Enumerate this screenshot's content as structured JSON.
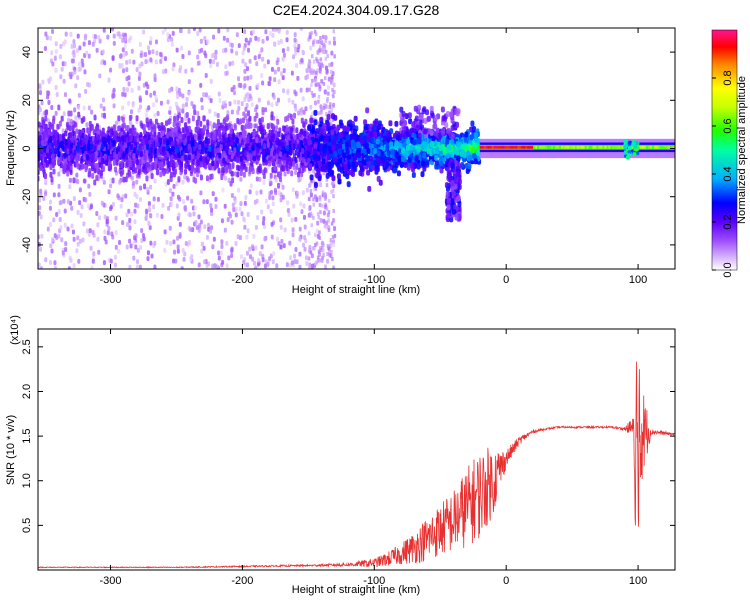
{
  "title": "C2E4.2024.304.09.17.G28",
  "chart_data": [
    {
      "type": "heatmap",
      "xlabel": "Height of straight line (km)",
      "ylabel": "Frequency (Hz)",
      "xlim": [
        -355,
        128
      ],
      "ylim": [
        -50,
        50
      ],
      "xticks": [
        -300,
        -200,
        -100,
        0,
        100
      ],
      "yticks": [
        -40,
        -20,
        0,
        20,
        40
      ],
      "colorbar": {
        "label": "Normalized spectral amplitude",
        "range": [
          0,
          1
        ],
        "ticks": [
          0.0,
          0.2,
          0.4,
          0.6,
          0.8
        ],
        "tick_labels": [
          "0.0",
          "0.2",
          "0.4",
          "0.6",
          "0.8"
        ],
        "colors": [
          "#ffffff",
          "#c8a0ff",
          "#7a00ff",
          "#0000ff",
          "#00c8ff",
          "#00ff66",
          "#b4ff00",
          "#ffff00",
          "#ff8800",
          "#ff0000",
          "#ff1493"
        ]
      },
      "description_of_pattern": {
        "noisy_region_x": [
          -355,
          -150
        ],
        "noisy_band_freq": [
          -10,
          10
        ],
        "transition_region_x": [
          -150,
          -20
        ],
        "clean_tone_region_x": [
          -20,
          128
        ],
        "tone_freq": 0.5,
        "tone_amplitude": 0.95
      }
    },
    {
      "type": "line",
      "xlabel": "Height of straight line (km)",
      "ylabel": "SNR (10 * v/v)",
      "scale_label": "(x10⁴)",
      "xlim": [
        -355,
        128
      ],
      "ylim": [
        0,
        2.7
      ],
      "xticks": [
        -300,
        -200,
        -100,
        0,
        100
      ],
      "yticks": [
        0.5,
        1.0,
        1.5,
        2.0,
        2.5
      ],
      "ytick_labels": [
        "0.5",
        "1.0",
        "1.5",
        "2.0",
        "2.5"
      ],
      "series": [
        {
          "color": "#e83030",
          "x": [
            -355,
            -300,
            -250,
            -200,
            -150,
            -120,
            -100,
            -90,
            -80,
            -70,
            -60,
            -50,
            -40,
            -30,
            -20,
            -10,
            0,
            10,
            20,
            30,
            40,
            60,
            80,
            90,
            95,
            100,
            110,
            128
          ],
          "y": [
            0.03,
            0.03,
            0.03,
            0.04,
            0.05,
            0.06,
            0.08,
            0.12,
            0.18,
            0.25,
            0.35,
            0.45,
            0.55,
            0.7,
            0.85,
            1.0,
            1.25,
            1.45,
            1.55,
            1.58,
            1.6,
            1.6,
            1.6,
            1.58,
            1.6,
            1.55,
            1.55,
            1.52
          ],
          "noise": [
            0.005,
            0.005,
            0.005,
            0.008,
            0.01,
            0.02,
            0.05,
            0.08,
            0.12,
            0.18,
            0.25,
            0.3,
            0.35,
            0.45,
            0.5,
            0.4,
            0.1,
            0.05,
            0.02,
            0.01,
            0.01,
            0.01,
            0.01,
            0.02,
            0.1,
            0.8,
            0.03,
            0.01
          ]
        }
      ]
    }
  ]
}
